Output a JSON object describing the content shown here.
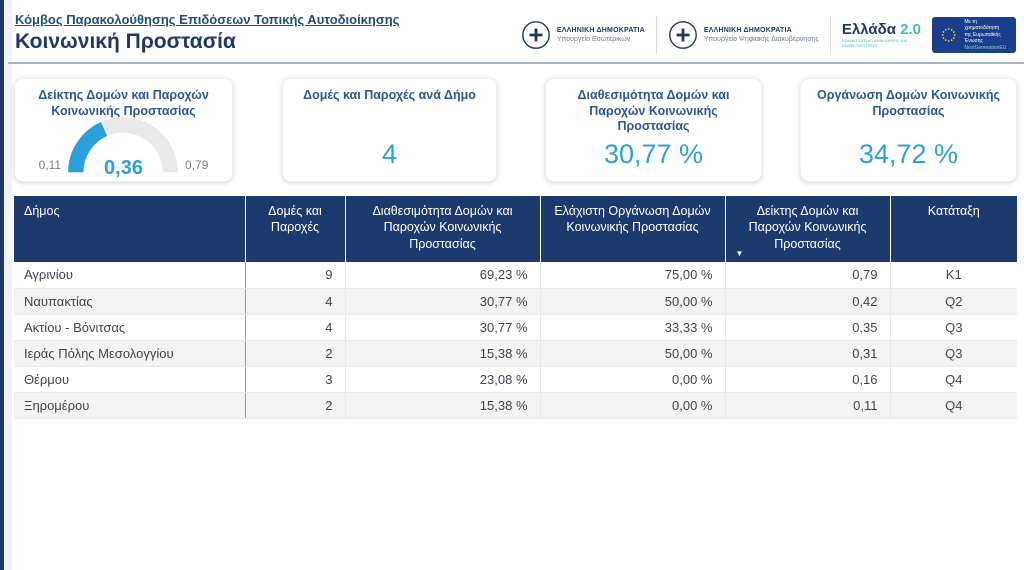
{
  "page": {
    "breadcrumb": "Κόμβος Παρακολούθησης Επιδόσεων Τοπικής Αυτοδιοίκησης",
    "title": "Κοινωνική Προστασία"
  },
  "logos": {
    "ministry_interior": {
      "name": "ΕΛΛΗΝΙΚΗ ΔΗΜΟΚΡΑΤΙΑ",
      "sub": "Υπουργείο Εσωτερικών"
    },
    "ministry_digital": {
      "name": "ΕΛΛΗΝΙΚΗ ΔΗΜΟΚΡΑΤΙΑ",
      "sub": "Υπουργείο Ψηφιακής Διακυβέρνησης"
    },
    "greece20": {
      "brand": "Ελλάδα",
      "version": "2.0",
      "tagline": "ΕΘΝΙΚΟ ΣΧΕΔΙΟ ΑΝΑΚΑΜΨΗΣ ΚΑΙ ΑΝΘΕΚΤΙΚΟΤΗΤΑΣ"
    },
    "eu_funding": {
      "line1": "Με τη χρηματοδότηση",
      "line2": "της Ευρωπαϊκής Ένωσης",
      "line3": "NextGenerationEU"
    }
  },
  "cards": [
    {
      "title": "Δείκτης Δομών και Παροχών Κοινωνικής Προστασίας",
      "type": "gauge",
      "gauge": {
        "min": "0,11",
        "max": "0,79",
        "value": "0,36"
      }
    },
    {
      "title": "Δομές και Παροχές ανά Δήμο",
      "value": "4"
    },
    {
      "title": "Διαθεσιμότητα Δομών και Παροχών Κοινωνικής Προστασίας",
      "value": "30,77 %"
    },
    {
      "title": "Οργάνωση Δομών Κοινωνικής Προστασίας",
      "value": "34,72 %"
    }
  ],
  "table": {
    "columns": [
      "Δήμος",
      "Δομές και Παροχές",
      "Διαθεσιμότητα Δομών και Παροχών Κοινωνικής Προστασίας",
      "Ελάχιστη Οργάνωση Δομών Κοινωνικής Προστασίας",
      "Δείκτης Δομών και Παροχών Κοινωνικής Προστασίας",
      "Κατάταξη"
    ],
    "sort": {
      "column_index": 4,
      "direction": "desc"
    },
    "rows": [
      [
        "Αγρινίου",
        "9",
        "69,23 %",
        "75,00 %",
        "0,79",
        "K1"
      ],
      [
        "Ναυπακτίας",
        "4",
        "30,77 %",
        "50,00 %",
        "0,42",
        "Q2"
      ],
      [
        "Ακτίου - Βόνιτσας",
        "4",
        "30,77 %",
        "33,33 %",
        "0,35",
        "Q3"
      ],
      [
        "Ιεράς Πόλης Μεσολογγίου",
        "2",
        "15,38 %",
        "50,00 %",
        "0,31",
        "Q3"
      ],
      [
        "Θέρμου",
        "3",
        "23,08 %",
        "0,00 %",
        "0,16",
        "Q4"
      ],
      [
        "Ξηρομέρου",
        "2",
        "15,38 %",
        "0,00 %",
        "0,11",
        "Q4"
      ]
    ]
  },
  "colors": {
    "accent_blue": "#2BA0DC",
    "navy": "#1F3864",
    "table_header_bg": "#1C3A6E",
    "gauge_track": "#e9e9e9",
    "teal": "#3DBFAE",
    "eu_flag_blue": "#1A3E8C",
    "eu_star_yellow": "#FFD617"
  }
}
